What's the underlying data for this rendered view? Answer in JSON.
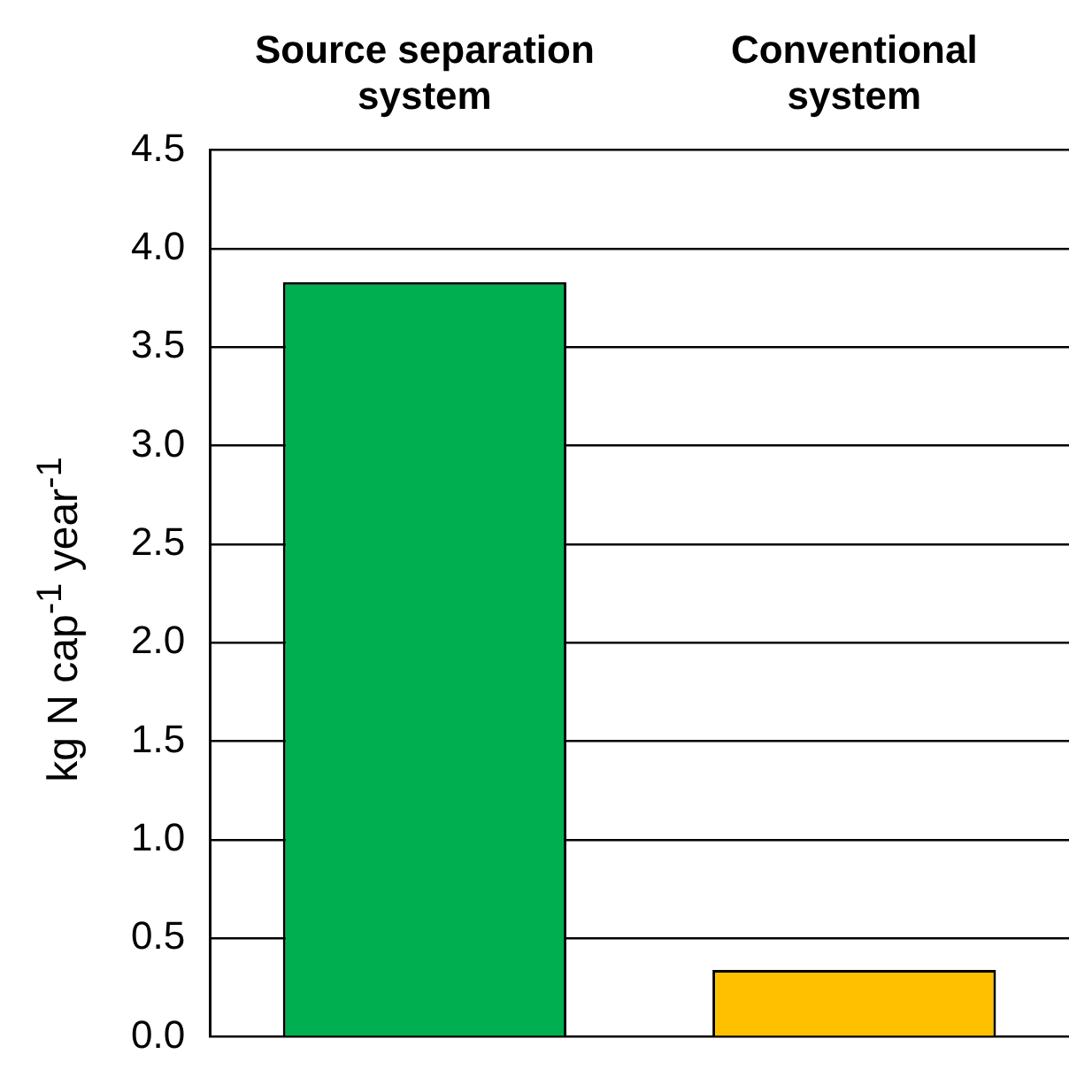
{
  "chart_data": {
    "type": "bar",
    "ylabel": "kg N cap$^{-1}$ year$^{-1}$",
    "categories": [
      "Source separation system",
      "Conventional system"
    ],
    "values": [
      3.83,
      0.34
    ],
    "colors": [
      "#00b050",
      "#ffc000"
    ],
    "ylim": [
      0,
      4.5
    ],
    "yticks": [
      {
        "value": 0,
        "label": "0.0"
      },
      {
        "value": 0.5,
        "label": "0.5"
      },
      {
        "value": 1,
        "label": "1.0"
      },
      {
        "value": 1.5,
        "label": "1.5"
      },
      {
        "value": 2,
        "label": "2.0"
      },
      {
        "value": 2.5,
        "label": "2.5"
      },
      {
        "value": 3,
        "label": "3.0"
      },
      {
        "value": 3.5,
        "label": "3.5"
      },
      {
        "value": 4,
        "label": "4.0"
      },
      {
        "value": 4.5,
        "label": "4.5"
      }
    ],
    "grid": "y"
  }
}
